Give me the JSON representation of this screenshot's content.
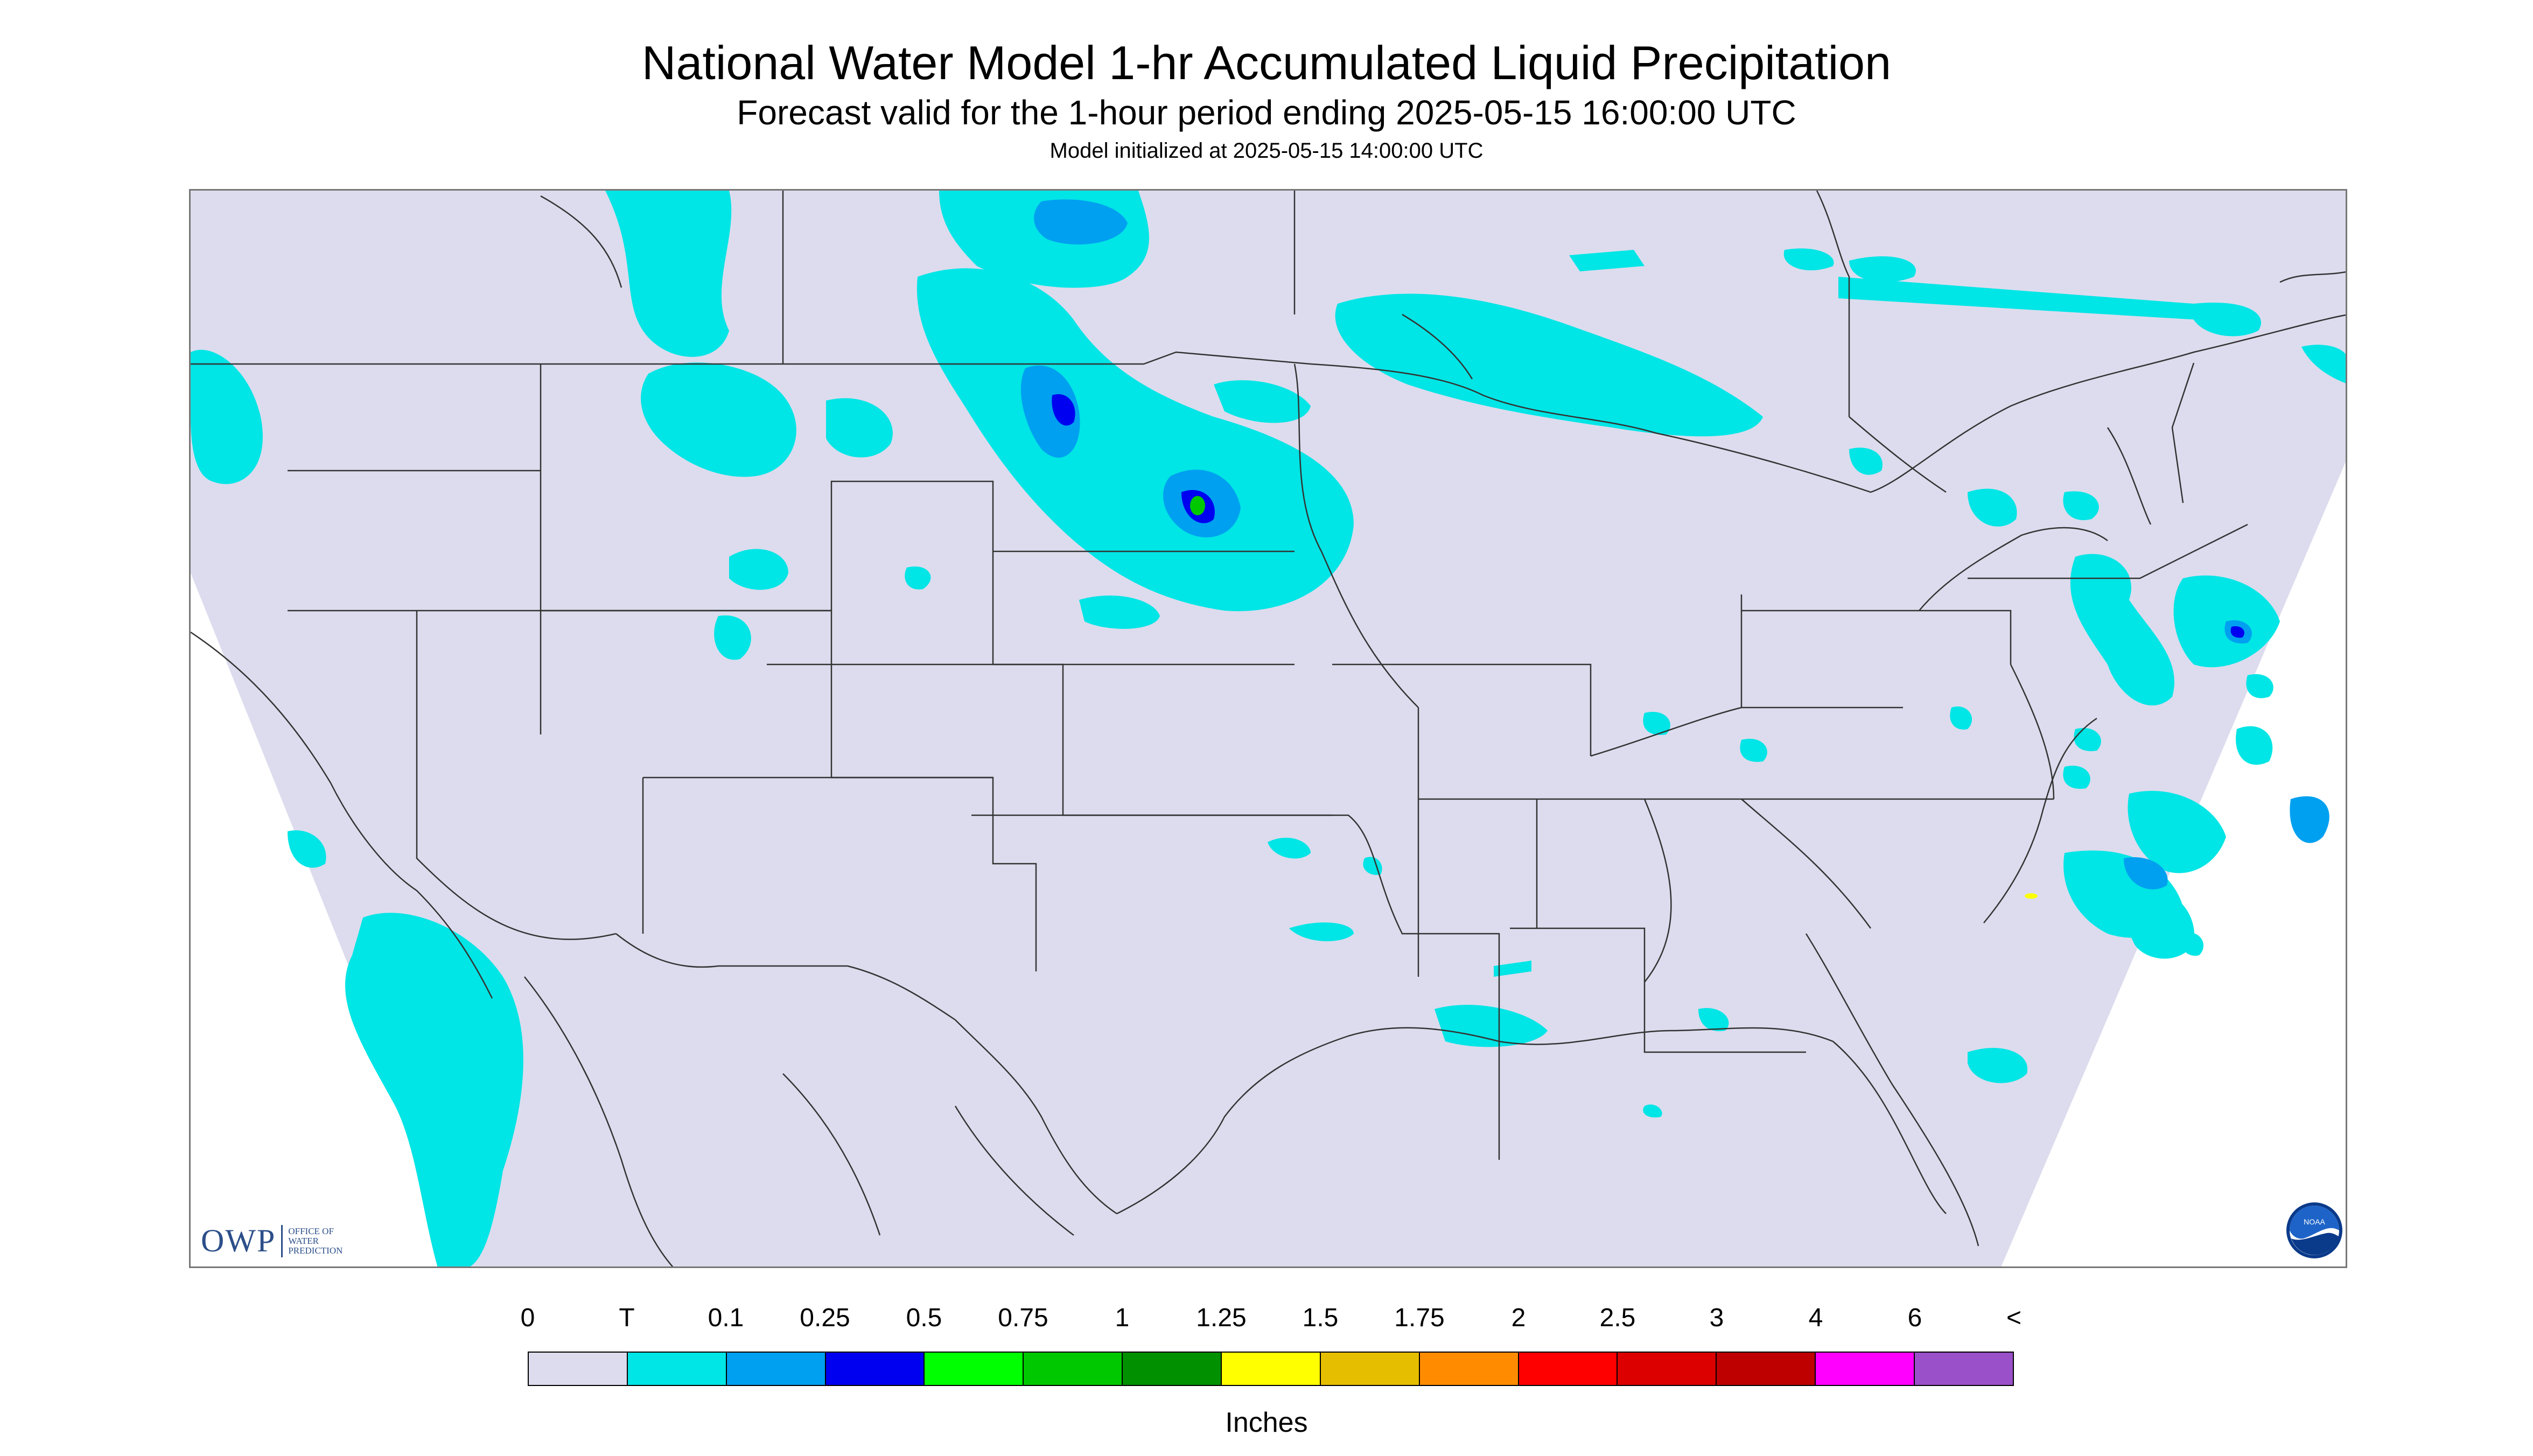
{
  "header": {
    "title": "National Water Model 1-hr Accumulated Liquid Precipitation",
    "subtitle": "Forecast valid for the 1-hour period ending 2025-05-15 16:00:00 UTC",
    "init": "Model initialized at 2025-05-15 14:00:00 UTC"
  },
  "logos": {
    "owp_mark": "OWP",
    "owp_text": "OFFICE OF WATER PREDICTION",
    "noaa": "NOAA"
  },
  "legend": {
    "labels": [
      "0",
      "T",
      "0.1",
      "0.25",
      "0.5",
      "0.75",
      "1",
      "1.25",
      "1.5",
      "1.75",
      "2",
      "2.5",
      "3",
      "4",
      "6",
      "<"
    ],
    "colors": [
      "#dcdcee",
      "#00e5e5",
      "#00a0f0",
      "#0000f0",
      "#00ff00",
      "#00c800",
      "#009000",
      "#ffff00",
      "#e6be00",
      "#ff8c00",
      "#ff0000",
      "#dc0000",
      "#be0000",
      "#ff00ff",
      "#9a50c8"
    ],
    "units": "Inches"
  },
  "map": {
    "background": "#dcdcee",
    "outside": "#ffffff",
    "trace_color": "#00e5e5",
    "mid_color": "#00a0f0",
    "heavy_color": "#0000f0",
    "max_color": "#00ff00"
  }
}
